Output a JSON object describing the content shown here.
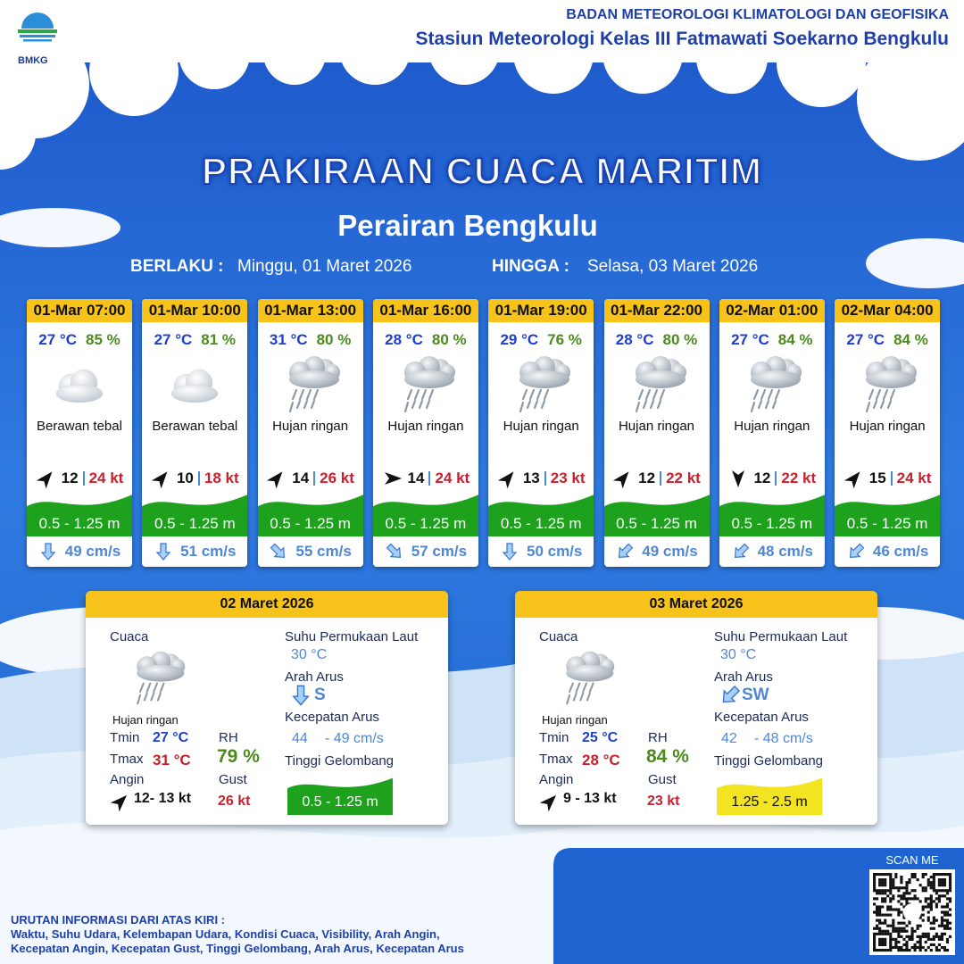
{
  "header": {
    "org": "BADAN METEOROLOGI KLIMATOLOGI DAN GEOFISIKA",
    "station": "Stasiun Meteorologi Kelas III Fatmawati Soekarno Bengkulu",
    "logo_text": "BMKG"
  },
  "title": "PRAKIRAAN CUACA MARITIM",
  "subtitle": "Perairan Bengkulu",
  "validity": {
    "from_label": "BERLAKU :",
    "from": "Minggu, 01 Maret 2026",
    "to_label": "HINGGA :",
    "to": "Selasa, 03 Maret 2026"
  },
  "forecasts": [
    {
      "time": "01-Mar 07:00",
      "temp": "27 °C",
      "rh": "85 %",
      "condition": "Berawan tebal",
      "wind": "12",
      "gust": "24 kt",
      "wave": "0.5 - 1.25 m",
      "current": "49 cm/s"
    },
    {
      "time": "01-Mar 10:00",
      "temp": "27 °C",
      "rh": "81 %",
      "condition": "Berawan tebal",
      "wind": "10",
      "gust": "18 kt",
      "wave": "0.5 - 1.25 m",
      "current": "51 cm/s"
    },
    {
      "time": "01-Mar 13:00",
      "temp": "31 °C",
      "rh": "80 %",
      "condition": "Hujan ringan",
      "wind": "14",
      "gust": "26 kt",
      "wave": "0.5 - 1.25 m",
      "current": "55 cm/s"
    },
    {
      "time": "01-Mar 16:00",
      "temp": "28 °C",
      "rh": "80 %",
      "condition": "Hujan ringan",
      "wind": "14",
      "gust": "24 kt",
      "wave": "0.5 - 1.25 m",
      "current": "57 cm/s"
    },
    {
      "time": "01-Mar 19:00",
      "temp": "29 °C",
      "rh": "76 %",
      "condition": "Hujan ringan",
      "wind": "13",
      "gust": "23 kt",
      "wave": "0.5 - 1.25 m",
      "current": "50 cm/s"
    },
    {
      "time": "01-Mar 22:00",
      "temp": "28 °C",
      "rh": "80 %",
      "condition": "Hujan ringan",
      "wind": "12",
      "gust": "22 kt",
      "wave": "0.5 - 1.25 m",
      "current": "49 cm/s"
    },
    {
      "time": "02-Mar 01:00",
      "temp": "27 °C",
      "rh": "84 %",
      "condition": "Hujan ringan",
      "wind": "12",
      "gust": "22 kt",
      "wave": "0.5 - 1.25 m",
      "current": "48 cm/s"
    },
    {
      "time": "02-Mar 04:00",
      "temp": "27 °C",
      "rh": "84 %",
      "condition": "Hujan ringan",
      "wind": "15",
      "gust": "24 kt",
      "wave": "0.5 - 1.25 m",
      "current": "46 cm/s"
    }
  ],
  "summary_labels": {
    "weather": "Cuaca",
    "sst": "Suhu Permukaan Laut",
    "current_dir": "Arah Arus",
    "current_speed": "Kecepatan Arus",
    "wave": "Tinggi Gelombang",
    "tmin": "Tmin",
    "tmax": "Tmax",
    "wind": "Angin",
    "rh": "RH",
    "gust": "Gust"
  },
  "summaries": [
    {
      "date": "02 Maret 2026",
      "condition": "Hujan ringan",
      "tmin": "27 °C",
      "tmax": "31 °C",
      "rh": "79 %",
      "wind": "12- 13 kt",
      "gust": "26 kt",
      "sst": "30 °C",
      "current_dir": "S",
      "current_min": "44",
      "current_max": "- 49 cm/s",
      "wave": "0.5 - 1.25 m"
    },
    {
      "date": "03 Maret 2026",
      "condition": "Hujan ringan",
      "tmin": "25 °C",
      "tmax": "28 °C",
      "rh": "84 %",
      "wind": "9  - 13 kt",
      "gust": "23 kt",
      "sst": "30 °C",
      "current_dir": "SW",
      "current_min": "42",
      "current_max": "- 48 cm/s",
      "wave": "1.25 - 2.5 m"
    }
  ],
  "footer": {
    "heading": "URUTAN INFORMASI DARI ATAS KIRI :",
    "line1": "Waktu, Suhu Udara, Kelembapan Udara, Kondisi Cuaca, Visibility, Arah Angin,",
    "line2": "Kecepatan Angin, Kecepatan Gust, Tinggi Gelombang, Arah Arus, Kecepatan Arus",
    "scan": "SCAN ME"
  }
}
